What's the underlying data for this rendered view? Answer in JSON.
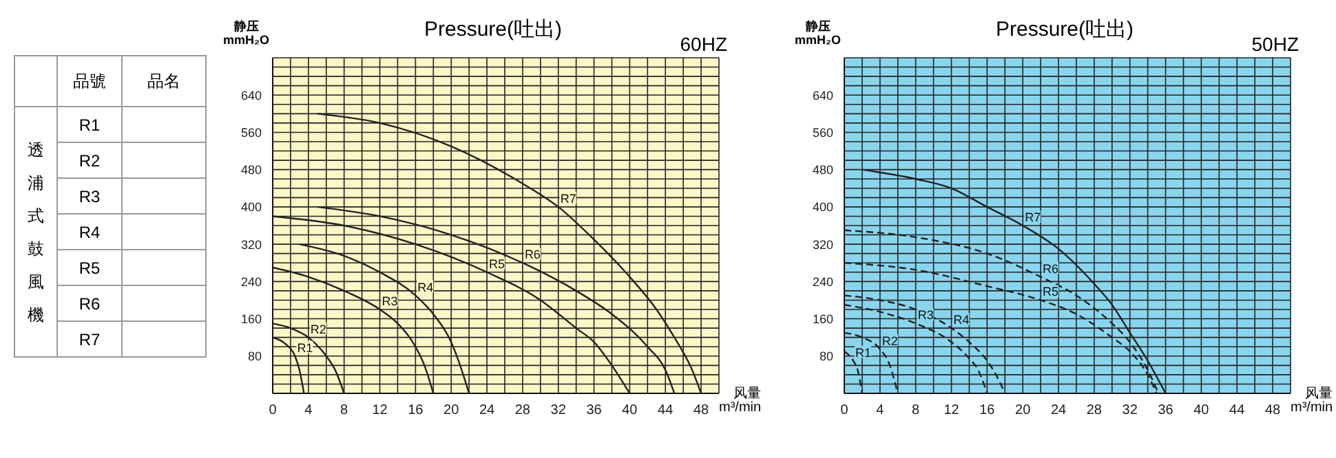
{
  "chart_data": [
    {
      "type": "other",
      "ylabel": "透浦式鼓風機",
      "annotations": [
        "品號",
        "品名"
      ],
      "categories": [
        "R1",
        "R2",
        "R3",
        "R4",
        "R5",
        "R6",
        "R7"
      ]
    },
    {
      "type": "line",
      "title": "Pressure(吐出)",
      "subtitle": "60HZ",
      "ylabel": "静压\nmmH₂O",
      "xlabel": "风量\nm³/min",
      "xlim": [
        0,
        50
      ],
      "ylim": [
        0,
        720
      ],
      "xticks": [
        0,
        {
          "value": 2,
          "label": null
        },
        4,
        {
          "value": 6,
          "label": null
        },
        8,
        {
          "value": 10,
          "label": null
        },
        12,
        {
          "value": 14,
          "label": null
        },
        16,
        {
          "value": 18,
          "label": null
        },
        20,
        {
          "value": 22,
          "label": null
        },
        24,
        {
          "value": 26,
          "label": null
        },
        28,
        {
          "value": 30,
          "label": null
        },
        32,
        {
          "value": 34,
          "label": null
        },
        36,
        {
          "value": 38,
          "label": null
        },
        40,
        {
          "value": 42,
          "label": null
        },
        44,
        {
          "value": 46,
          "label": null
        },
        48,
        {
          "value": 50,
          "label": null
        }
      ],
      "yticks": [
        {
          "value": 0,
          "label": null
        },
        {
          "value": 20,
          "label": null
        },
        {
          "value": 40,
          "label": null
        },
        {
          "value": 60,
          "label": null
        },
        80,
        {
          "value": 100,
          "label": null
        },
        {
          "value": 120,
          "label": null
        },
        {
          "value": 140,
          "label": null
        },
        160,
        {
          "value": 180,
          "label": null
        },
        {
          "value": 200,
          "label": null
        },
        {
          "value": 220,
          "label": null
        },
        240,
        {
          "value": 260,
          "label": null
        },
        {
          "value": 280,
          "label": null
        },
        {
          "value": 300,
          "label": null
        },
        320,
        {
          "value": 340,
          "label": null
        },
        {
          "value": 360,
          "label": null
        },
        {
          "value": 380,
          "label": null
        },
        400,
        {
          "value": 420,
          "label": null
        },
        {
          "value": 440,
          "label": null
        },
        {
          "value": 460,
          "label": null
        },
        480,
        {
          "value": 500,
          "label": null
        },
        {
          "value": 520,
          "label": null
        },
        {
          "value": 540,
          "label": null
        },
        560,
        {
          "value": 580,
          "label": null
        },
        {
          "value": 600,
          "label": null
        },
        {
          "value": 620,
          "label": null
        },
        640,
        {
          "value": 660,
          "label": null
        },
        {
          "value": 680,
          "label": null
        },
        {
          "value": 700,
          "label": null
        },
        {
          "value": 720,
          "label": null
        }
      ],
      "grid": true,
      "marker": "none",
      "line_style": "solid",
      "series": [
        {
          "name": "R1",
          "color": "#222222",
          "x": [
            0,
            1.5,
            2.5,
            3,
            3.5
          ],
          "values": [
            120,
            105,
            80,
            50,
            0
          ]
        },
        {
          "name": "R2",
          "color": "#222222",
          "x": [
            0,
            2,
            4,
            6,
            7,
            8
          ],
          "values": [
            150,
            140,
            120,
            80,
            50,
            0
          ]
        },
        {
          "name": "R3",
          "color": "#222222",
          "x": [
            0,
            4,
            8,
            12,
            14,
            16,
            17,
            18
          ],
          "values": [
            270,
            250,
            220,
            180,
            150,
            100,
            60,
            0
          ]
        },
        {
          "name": "R4",
          "color": "#222222",
          "x": [
            3,
            8,
            12,
            16,
            18,
            20,
            21,
            22
          ],
          "values": [
            320,
            295,
            260,
            210,
            170,
            110,
            60,
            0
          ]
        },
        {
          "name": "R5",
          "color": "#222222",
          "x": [
            0,
            8,
            16,
            24,
            30,
            34,
            36,
            38,
            40
          ],
          "values": [
            380,
            360,
            320,
            260,
            200,
            140,
            110,
            60,
            0
          ]
        },
        {
          "name": "R6",
          "color": "#222222",
          "x": [
            5,
            12,
            20,
            28,
            34,
            38,
            42,
            44,
            45
          ],
          "values": [
            400,
            380,
            340,
            280,
            220,
            170,
            100,
            50,
            0
          ]
        },
        {
          "name": "R7",
          "color": "#222222",
          "x": [
            5,
            12,
            20,
            28,
            32,
            36,
            40,
            43,
            45,
            47,
            48
          ],
          "values": [
            600,
            580,
            530,
            450,
            400,
            330,
            250,
            180,
            120,
            50,
            0
          ]
        }
      ]
    },
    {
      "type": "line",
      "title": "Pressure(吐出)",
      "subtitle": "50HZ",
      "ylabel": "静压\nmmH₂O",
      "xlabel": "风量\nm³/min",
      "xlim": [
        0,
        50
      ],
      "ylim": [
        0,
        720
      ],
      "xticks": [
        0,
        {
          "value": 2,
          "label": null
        },
        4,
        {
          "value": 6,
          "label": null
        },
        8,
        {
          "value": 10,
          "label": null
        },
        12,
        {
          "value": 14,
          "label": null
        },
        16,
        {
          "value": 18,
          "label": null
        },
        20,
        {
          "value": 22,
          "label": null
        },
        24,
        {
          "value": 26,
          "label": null
        },
        28,
        {
          "value": 30,
          "label": null
        },
        32,
        {
          "value": 34,
          "label": null
        },
        36,
        {
          "value": 38,
          "label": null
        },
        40,
        {
          "value": 42,
          "label": null
        },
        44,
        {
          "value": 46,
          "label": null
        },
        48,
        {
          "value": 50,
          "label": null
        }
      ],
      "yticks": [
        {
          "value": 0,
          "label": null
        },
        {
          "value": 20,
          "label": null
        },
        {
          "value": 40,
          "label": null
        },
        {
          "value": 60,
          "label": null
        },
        80,
        {
          "value": 100,
          "label": null
        },
        {
          "value": 120,
          "label": null
        },
        {
          "value": 140,
          "label": null
        },
        160,
        {
          "value": 180,
          "label": null
        },
        {
          "value": 200,
          "label": null
        },
        {
          "value": 220,
          "label": null
        },
        240,
        {
          "value": 260,
          "label": null
        },
        {
          "value": 280,
          "label": null
        },
        {
          "value": 300,
          "label": null
        },
        320,
        {
          "value": 340,
          "label": null
        },
        {
          "value": 360,
          "label": null
        },
        {
          "value": 380,
          "label": null
        },
        400,
        {
          "value": 420,
          "label": null
        },
        {
          "value": 440,
          "label": null
        },
        {
          "value": 460,
          "label": null
        },
        480,
        {
          "value": 500,
          "label": null
        },
        {
          "value": 520,
          "label": null
        },
        {
          "value": 540,
          "label": null
        },
        560,
        {
          "value": 580,
          "label": null
        },
        {
          "value": 600,
          "label": null
        },
        {
          "value": 620,
          "label": null
        },
        640,
        {
          "value": 660,
          "label": null
        },
        {
          "value": 680,
          "label": null
        },
        {
          "value": 700,
          "label": null
        },
        {
          "value": 720,
          "label": null
        }
      ],
      "grid": true,
      "marker": "none",
      "line_style": "solid",
      "series": [
        {
          "name": "R1",
          "color": "#222222",
          "line_style": "dashed",
          "x": [
            0,
            1,
            1.5,
            2
          ],
          "values": [
            90,
            70,
            50,
            0
          ]
        },
        {
          "name": "R2",
          "color": "#222222",
          "line_style": "dashed",
          "x": [
            0,
            2,
            4,
            5,
            6
          ],
          "values": [
            130,
            120,
            95,
            65,
            0
          ]
        },
        {
          "name": "R3",
          "color": "#222222",
          "line_style": "dashed",
          "x": [
            0,
            4,
            8,
            12,
            14,
            15,
            16
          ],
          "values": [
            190,
            175,
            150,
            110,
            75,
            50,
            0
          ]
        },
        {
          "name": "R4",
          "color": "#222222",
          "line_style": "dashed",
          "x": [
            0,
            4,
            8,
            12,
            14,
            16,
            17,
            18
          ],
          "values": [
            210,
            200,
            180,
            140,
            110,
            70,
            40,
            0
          ]
        },
        {
          "name": "R5",
          "color": "#222222",
          "line_style": "dashed",
          "x": [
            0,
            8,
            16,
            22,
            26,
            30,
            32,
            34,
            35
          ],
          "values": [
            280,
            265,
            230,
            200,
            170,
            120,
            90,
            40,
            0
          ]
        },
        {
          "name": "R6",
          "color": "#222222",
          "line_style": "dashed",
          "x": [
            0,
            8,
            16,
            22,
            26,
            30,
            32,
            34,
            35.2
          ],
          "values": [
            350,
            335,
            300,
            250,
            210,
            150,
            110,
            50,
            0
          ]
        },
        {
          "name": "R7",
          "color": "#222222",
          "x": [
            2,
            8,
            12,
            16,
            20,
            24,
            28,
            30,
            32,
            34,
            36
          ],
          "values": [
            480,
            460,
            440,
            400,
            360,
            310,
            235,
            190,
            130,
            70,
            0
          ]
        }
      ]
    }
  ]
}
